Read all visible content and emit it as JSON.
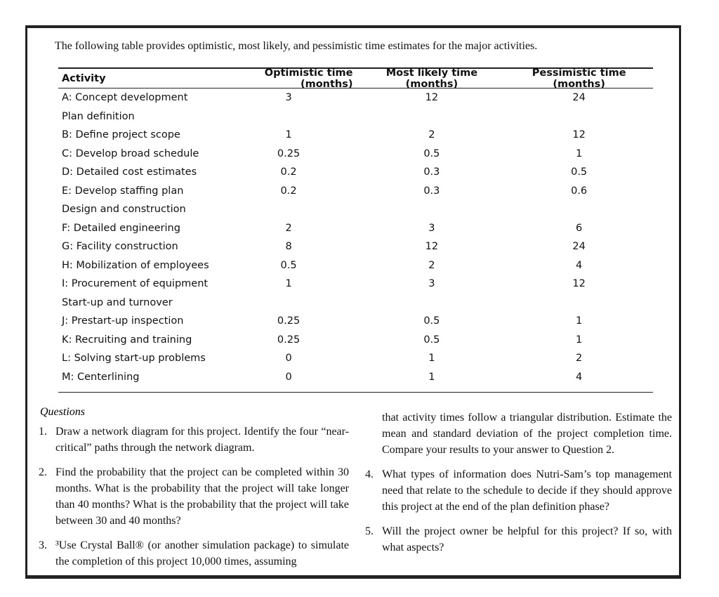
{
  "intro": "The following table provides optimistic, most likely, and pessimistic time estimates for the major activities.",
  "table": {
    "headers": [
      "Activity",
      "Optimistic time (months)",
      "Most likely time (months)",
      "Pessimistic time (months)"
    ],
    "rows": [
      [
        "A: Concept development",
        "3",
        "12",
        "24"
      ],
      [
        "Plan definition",
        "",
        "",
        ""
      ],
      [
        "B: Define project scope",
        "1",
        "2",
        "12"
      ],
      [
        "C: Develop broad schedule",
        "0.25",
        "0.5",
        "1"
      ],
      [
        "D: Detailed cost estimates",
        "0.2",
        "0.3",
        "0.5"
      ],
      [
        "E: Develop staffing plan",
        "0.2",
        "0.3",
        "0.6"
      ],
      [
        "Design and construction",
        "",
        "",
        ""
      ],
      [
        "F: Detailed engineering",
        "2",
        "3",
        "6"
      ],
      [
        "G: Facility construction",
        "8",
        "12",
        "24"
      ],
      [
        "H: Mobilization of employees",
        "0.5",
        "2",
        "4"
      ],
      [
        "I: Procurement of equipment",
        "1",
        "3",
        "12"
      ],
      [
        "Start-up and turnover",
        "",
        "",
        ""
      ],
      [
        "J: Prestart-up inspection",
        "0.25",
        "0.5",
        "1"
      ],
      [
        "K: Recruiting and training",
        "0.25",
        "0.5",
        "1"
      ],
      [
        "L: Solving start-up problems",
        "0",
        "1",
        "2"
      ],
      [
        "M: Centerlining",
        "0",
        "1",
        "4"
      ]
    ]
  },
  "questions": {
    "title": "Questions",
    "left": [
      {
        "num": "1.",
        "text": "Draw a network diagram for this project. Identify the four “near-critical” paths through the network diagram."
      },
      {
        "num": "2.",
        "text": "Find the probability that the project can be completed within 30 months. What is the probability that the project will take longer than 40 months? What is the probability that the project will take between 30 and 40 months?"
      },
      {
        "num": "3.",
        "text": "³Use Crystal Ball® (or another simulation package) to simulate the completion of this project 10,000 times, assuming"
      }
    ],
    "continuation": "that activity times follow a triangular distribution. Estimate the mean and standard deviation of the project completion time. Compare your results to your answer to Question 2.",
    "right": [
      {
        "num": "4.",
        "text": "What types of information does Nutri-Sam’s top management need that relate to the schedule to decide if they should approve this project at the end of the plan definition phase?"
      },
      {
        "num": "5.",
        "text": "Will the project owner be helpful for this project? If so, with what aspects?"
      }
    ]
  }
}
